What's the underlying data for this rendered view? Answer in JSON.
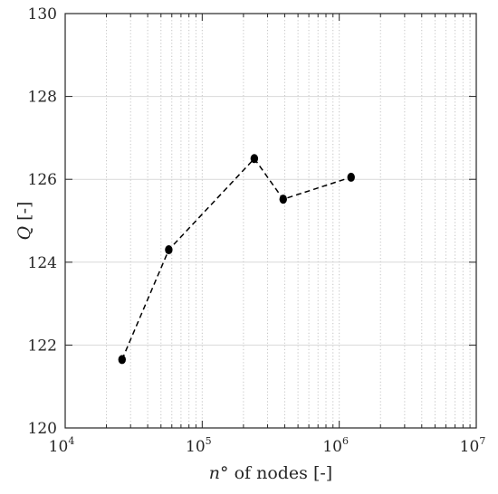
{
  "chart_data": {
    "type": "line",
    "x_scale": "log",
    "xlim": [
      10000,
      10000000
    ],
    "ylim": [
      120,
      130
    ],
    "xlabel": {
      "var": "n",
      "deg": "°",
      "rest": " of nodes [-]"
    },
    "ylabel": {
      "var": "Q",
      "rest": " [-]"
    },
    "x_ticks": [
      {
        "base": "10",
        "exp": "4",
        "value": 10000
      },
      {
        "base": "10",
        "exp": "5",
        "value": 100000
      },
      {
        "base": "10",
        "exp": "6",
        "value": 1000000
      },
      {
        "base": "10",
        "exp": "7",
        "value": 10000000
      }
    ],
    "y_ticks": [
      {
        "label": "120",
        "value": 120
      },
      {
        "label": "122",
        "value": 122
      },
      {
        "label": "124",
        "value": 124
      },
      {
        "label": "126",
        "value": 126
      },
      {
        "label": "128",
        "value": 128
      },
      {
        "label": "130",
        "value": 130
      }
    ],
    "series": [
      {
        "x": [
          26000,
          57000,
          240000,
          390000,
          1220000
        ],
        "y": [
          121.65,
          124.3,
          126.5,
          125.52,
          126.05
        ],
        "line_style": "dashed",
        "marker": "circle",
        "color": "#000000"
      }
    ],
    "grid": {
      "x_minor": true,
      "y_major": true
    }
  }
}
